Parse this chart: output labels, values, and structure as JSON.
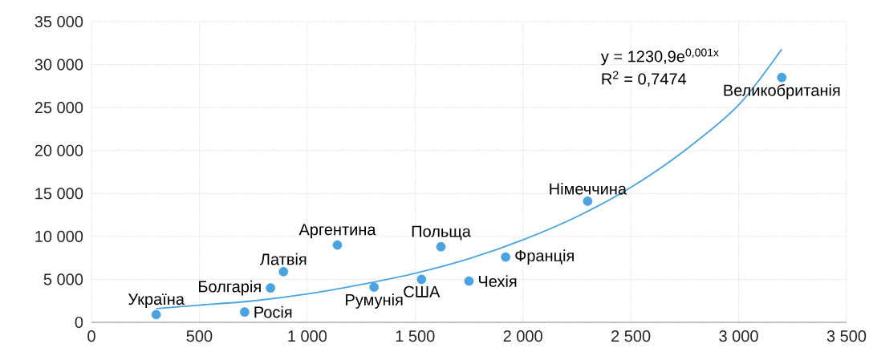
{
  "chart_data": {
    "type": "scatter",
    "xlim": [
      0,
      3500
    ],
    "ylim": [
      0,
      35000
    ],
    "xticks": [
      0,
      500,
      {
        "value": 1000,
        "label": "1 000"
      },
      {
        "value": 1500,
        "label": "1 500"
      },
      {
        "value": 2000,
        "label": "2 000"
      },
      {
        "value": 2500,
        "label": "2 500"
      },
      {
        "value": 3000,
        "label": "3 000"
      },
      {
        "value": 3500,
        "label": "3 500"
      }
    ],
    "yticks": [
      0,
      {
        "value": 5000,
        "label": "5 000"
      },
      {
        "value": 10000,
        "label": "10 000"
      },
      {
        "value": 15000,
        "label": "15 000"
      },
      {
        "value": 20000,
        "label": "20 000"
      },
      {
        "value": 25000,
        "label": "25 000"
      },
      {
        "value": 30000,
        "label": "30 000"
      },
      {
        "value": 35000,
        "label": "35 000"
      }
    ],
    "grid": true,
    "series": [
      {
        "type": "scatter",
        "marker": "circle",
        "color": "#4aa3df",
        "x": [
          300,
          710,
          830,
          890,
          1140,
          1310,
          1530,
          1620,
          1750,
          1920,
          2300,
          3200
        ],
        "values": [
          900,
          1200,
          4000,
          5900,
          9000,
          4100,
          5000,
          8800,
          4800,
          7600,
          14100,
          28500
        ]
      },
      {
        "type": "line",
        "marker": "none",
        "color": "#4aa3df",
        "line_style": "solid",
        "x": [
          300,
          500,
          750,
          1000,
          1250,
          1500,
          1750,
          2000,
          2250,
          2500,
          2750,
          3000,
          3200
        ],
        "values": [
          1600,
          2000,
          2500,
          3300,
          4400,
          5700,
          7400,
          9600,
          12300,
          15700,
          20000,
          25300,
          31800
        ]
      }
    ],
    "annotations": [
      {
        "text": "Україна",
        "x": 300,
        "y": 900
      },
      {
        "text": "Росія",
        "x": 710,
        "y": 1200
      },
      {
        "text": "Болгарія",
        "x": 830,
        "y": 4000
      },
      {
        "text": "Латвія",
        "x": 890,
        "y": 5900
      },
      {
        "text": "Аргентина",
        "x": 1140,
        "y": 9000
      },
      {
        "text": "Румунія",
        "x": 1310,
        "y": 4100
      },
      {
        "text": "США",
        "x": 1530,
        "y": 5000
      },
      {
        "text": "Польща",
        "x": 1620,
        "y": 8800
      },
      {
        "text": "Чехія",
        "x": 1750,
        "y": 4800
      },
      {
        "text": "Франція",
        "x": 1920,
        "y": 7600
      },
      {
        "text": "Німеччина",
        "x": 2300,
        "y": 14100
      },
      {
        "text": "Великобританія",
        "x": 3200,
        "y": 28500
      },
      "y = 1230,9e$^{0,001x}$",
      "R$^{2}$ = 0,7474"
    ]
  }
}
